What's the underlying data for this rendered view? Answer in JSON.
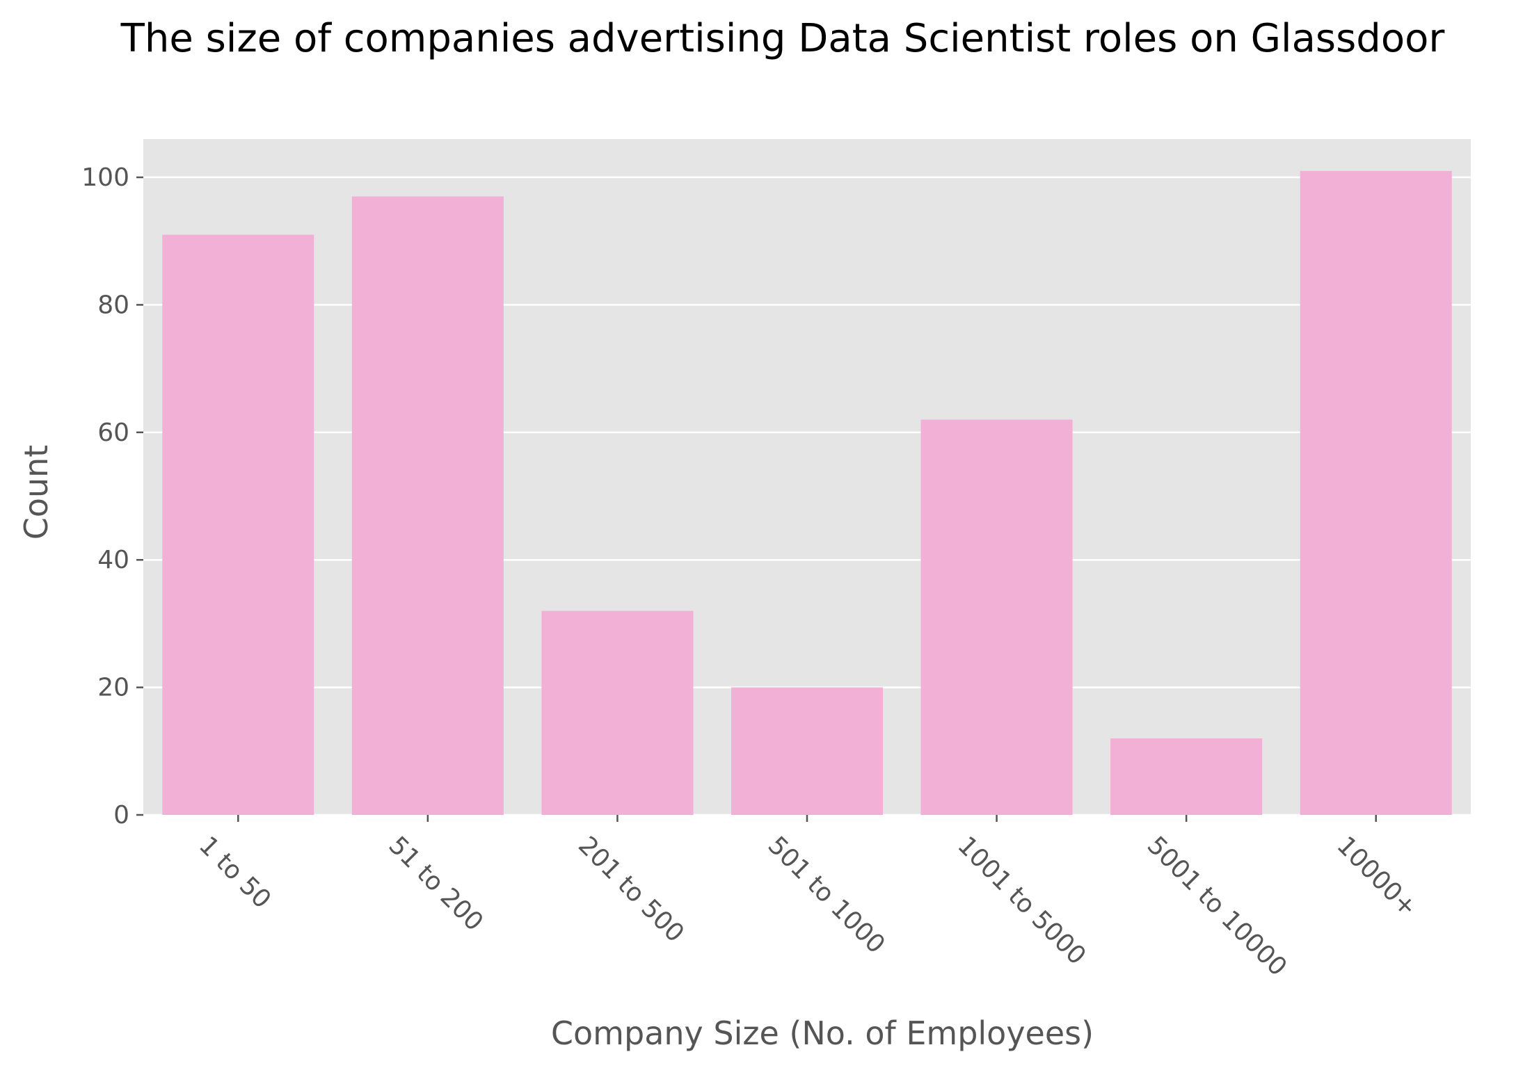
{
  "chart_data": {
    "type": "bar",
    "title": "The size of companies advertising Data Scientist roles on Glassdoor",
    "xlabel": "Company Size (No. of Employees)",
    "ylabel": "Count",
    "categories": [
      "1 to 50",
      "51 to 200",
      "201 to 500",
      "501 to 1000",
      "1001 to 5000",
      "5001 to 10000",
      "10000+"
    ],
    "values": [
      91,
      97,
      32,
      20,
      62,
      12,
      101
    ],
    "ylim": [
      0,
      106
    ],
    "yticks": [
      0,
      20,
      40,
      60,
      80,
      100
    ],
    "grid": true,
    "legend": "none",
    "colors": {
      "bar": "#f2b0d6",
      "plot_background": "#e5e5e5",
      "gridline": "#ffffff",
      "tick": "#555555"
    }
  }
}
